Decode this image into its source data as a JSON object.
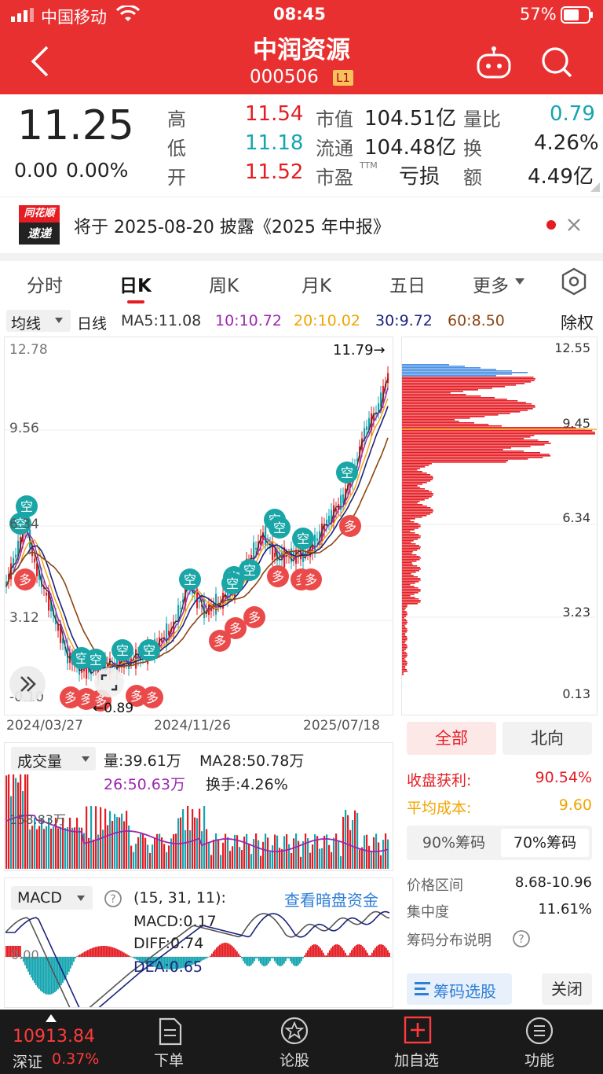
{
  "status": {
    "carrier": "中国移动",
    "time": "08:45",
    "battery": "57%"
  },
  "header": {
    "title": "中润资源",
    "code": "000506",
    "level": "L1"
  },
  "quote": {
    "price": "11.25",
    "change": "0.00",
    "change_pct": "0.00%",
    "high_label": "高",
    "high": "11.54",
    "low_label": "低",
    "low": "11.18",
    "open_label": "开",
    "open": "11.52",
    "mktcap_label": "市值",
    "mktcap": "104.51亿",
    "float_label": "流通",
    "float": "104.48亿",
    "pe_label": "市盈",
    "pe_sup": "TTM",
    "pe": "亏损",
    "volratio_label": "量比",
    "volratio": "0.79",
    "turnover_label": "换",
    "turnover": "4.26%",
    "amount_label": "额",
    "amount": "4.49亿"
  },
  "notice": {
    "brand_top": "同花顺",
    "brand_bottom": "速递",
    "text": "将于 2025-08-20 披露《2025 年中报》"
  },
  "tabs": [
    "分时",
    "日K",
    "周K",
    "月K",
    "五日",
    "更多"
  ],
  "active_tab": "日K",
  "ma_legend": {
    "selector": "均线",
    "kline": "日线",
    "ma5": "MA5:11.08",
    "ma10": "10:10.72",
    "ma20": "20:10.02",
    "ma30": "30:9.72",
    "ma60": "60:8.50",
    "adjust": "除权"
  },
  "colors": {
    "up": "#e51c23",
    "down": "#14a5b0",
    "ma5": "#333333",
    "ma10": "#9c27b0",
    "ma20": "#f0a500",
    "ma30": "#1a237e",
    "ma60": "#8b4513",
    "chip_up": "#e51c23",
    "chip_top": "#4a90e2"
  },
  "kchart": {
    "axis_left": [
      "12.78",
      "9.56",
      "6.34",
      "3.12",
      "-0.10"
    ],
    "max_label": "11.79→",
    "min_label": "←0.89",
    "dates": [
      "2024/03/27",
      "2024/11/26",
      "2025/07/18"
    ]
  },
  "chip_axis": [
    "12.55",
    "9.45",
    "6.34",
    "3.23",
    "0.13"
  ],
  "markers": {
    "sell": "空",
    "buy": "多"
  },
  "volume": {
    "selector": "成交量",
    "vol": "量:39.61万",
    "ma28": "MA28:50.78万",
    "ma26": "26:50.63万",
    "turnover": "换手:4.26%",
    "axis_label": "158.83万"
  },
  "macd": {
    "selector": "MACD",
    "params": "(15, 31, 11):",
    "link": "查看暗盘资金",
    "macd": "MACD:0.17",
    "diff": "DIFF:0.74",
    "dea": "DEA:0.65",
    "zero": "0.00"
  },
  "right_panel": {
    "tab_all": "全部",
    "tab_north": "北向",
    "profit_label": "收盘获利:",
    "profit": "90.54%",
    "cost_label": "平均成本:",
    "cost": "9.60",
    "chip90": "90%筹码",
    "chip70": "70%筹码",
    "range_label": "价格区间",
    "range": "8.68-10.96",
    "conc_label": "集中度",
    "conc": "11.61%",
    "desc_label": "筹码分布说明",
    "select_btn": "筹码选股",
    "close_btn": "关闭"
  },
  "bottom": {
    "index_value": "10913.84",
    "index_name": "深证",
    "index_pct": "0.37%",
    "nav": [
      "下单",
      "论股",
      "加自选",
      "功能"
    ]
  }
}
